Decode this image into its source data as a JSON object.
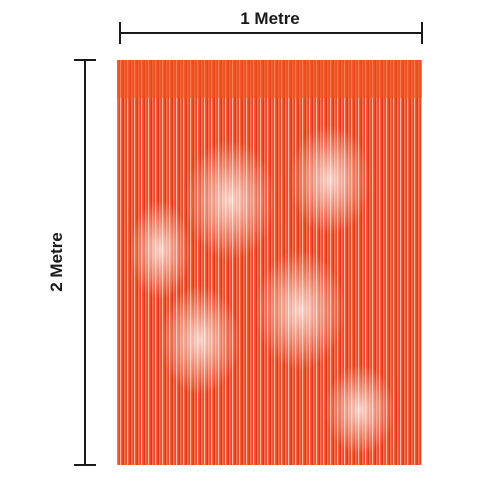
{
  "width_label": "1 Metre",
  "height_label": "2 Metre"
}
